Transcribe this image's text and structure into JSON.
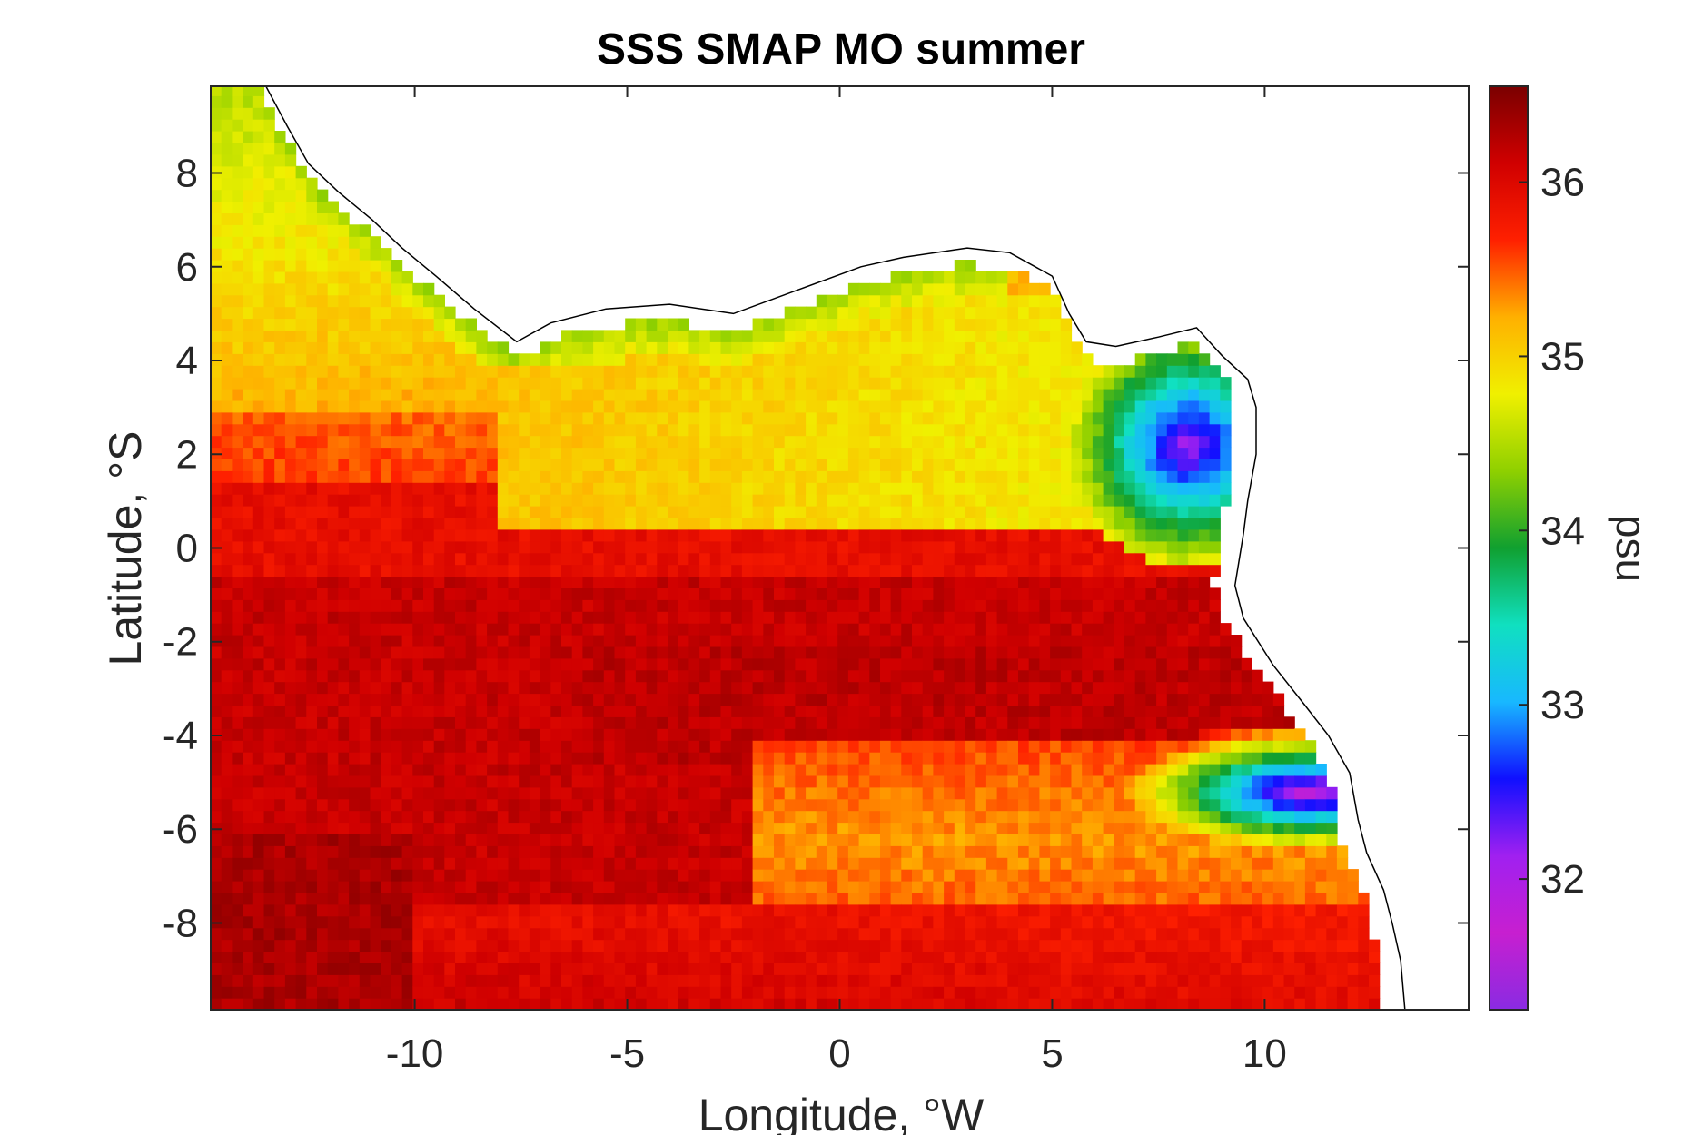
{
  "chart_data": {
    "type": "heatmap",
    "title": "SSS SMAP MO summer",
    "xlabel": "Longitude, °W",
    "ylabel": "Latitude, °S",
    "colorbar_label": "psu",
    "xlim": [
      -14.8,
      14.8
    ],
    "ylim": [
      -9.85,
      9.85
    ],
    "x_ticks": [
      -10,
      -5,
      0,
      5,
      10
    ],
    "x_tick_labels": [
      "-10",
      "-5",
      "0",
      "5",
      "10"
    ],
    "y_ticks": [
      -8,
      -6,
      -4,
      -2,
      0,
      2,
      4,
      6,
      8
    ],
    "y_tick_labels": [
      "-8",
      "-6",
      "-4",
      "-2",
      "0",
      "2",
      "4",
      "6",
      "8"
    ],
    "clim": [
      31.25,
      36.55
    ],
    "colorbar_ticks": [
      32,
      33,
      34,
      35,
      36
    ],
    "colorbar_tick_labels": [
      "32",
      "33",
      "34",
      "35",
      "36"
    ],
    "colormap": [
      "#8a2be2",
      "#c71fd0",
      "#a020f0",
      "#1010ff",
      "#18b8ff",
      "#10e0c0",
      "#10a030",
      "#8fd000",
      "#f0f000",
      "#ffb000",
      "#ff2000",
      "#d00000",
      "#7a0000"
    ],
    "grid": false,
    "features": [
      {
        "name": "low salinity plume",
        "lon": [
          9.5,
          11.5
        ],
        "lat": [
          -6,
          -4.5
        ],
        "value": 31.8
      },
      {
        "name": "coastal low salinity",
        "lon": [
          7,
          9
        ],
        "lat": [
          2,
          4
        ],
        "value": 32.2
      },
      {
        "name": "high salinity band",
        "lat": [
          -4,
          -2
        ],
        "value": 36.3
      }
    ]
  }
}
